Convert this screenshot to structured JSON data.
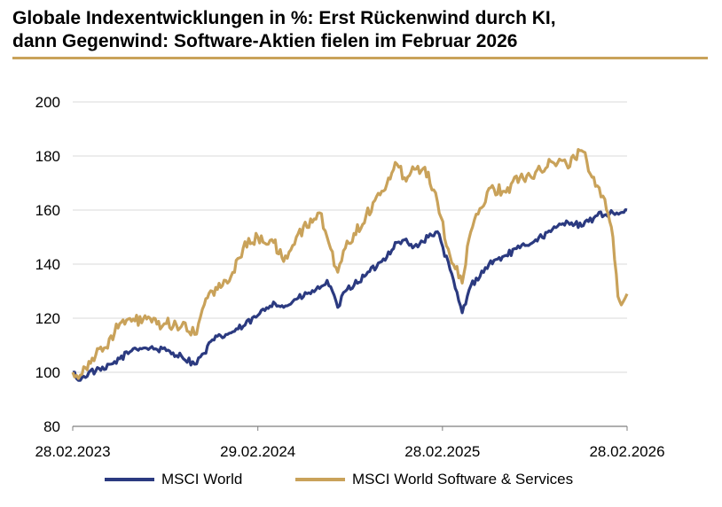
{
  "header": {
    "title_line1": "Globale Indexentwicklungen in %: Erst Rückenwind durch KI,",
    "title_line2": "dann Gegenwind: Software-Aktien fielen im Februar 2026"
  },
  "colors": {
    "world": "#2b3a80",
    "software": "#c9a25a",
    "grid": "#d9d9d9",
    "rule": "#c9a25a"
  },
  "legend": [
    {
      "label": "MSCI World",
      "color": "#2b3a80"
    },
    {
      "label": "MSCI World Software & Services",
      "color": "#c9a25a"
    }
  ],
  "chart_data": {
    "type": "line",
    "title": "Globale Indexentwicklungen in %: Erst Rückenwind durch KI, dann Gegenwind: Software-Aktien fielen im Februar 2026",
    "xlabel": "",
    "ylabel": "",
    "ylim": [
      80,
      200
    ],
    "xlim": [
      "2023-02-28",
      "2026-02-28"
    ],
    "yticks": [
      80,
      100,
      120,
      140,
      160,
      180,
      200
    ],
    "xticks": [
      "28.02.2023",
      "29.02.2024",
      "28.02.2025",
      "28.02.2026"
    ],
    "grid": "horizontal",
    "legend_position": "bottom",
    "series": [
      {
        "name": "MSCI World",
        "color": "#2b3a80",
        "x": [
          "2023-02-28",
          "2023-03-15",
          "2023-04-01",
          "2023-05-01",
          "2023-06-01",
          "2023-07-01",
          "2023-07-31",
          "2023-09-01",
          "2023-10-01",
          "2023-10-27",
          "2023-11-15",
          "2023-12-01",
          "2023-12-31",
          "2024-01-31",
          "2024-02-29",
          "2024-03-31",
          "2024-04-20",
          "2024-05-15",
          "2024-06-30",
          "2024-07-15",
          "2024-08-05",
          "2024-08-20",
          "2024-09-30",
          "2024-10-31",
          "2024-11-30",
          "2024-12-15",
          "2024-12-31",
          "2025-01-31",
          "2025-02-18",
          "2025-03-15",
          "2025-04-08",
          "2025-04-25",
          "2025-05-31",
          "2025-06-30",
          "2025-07-31",
          "2025-08-31",
          "2025-09-30",
          "2025-10-31",
          "2025-11-30",
          "2025-12-31",
          "2026-01-31",
          "2026-02-15",
          "2026-02-28"
        ],
        "values": [
          100,
          97,
          100,
          101,
          105,
          109,
          109,
          108,
          106,
          103,
          107,
          112,
          114,
          117,
          121,
          126,
          124,
          127,
          131,
          134,
          124,
          130,
          136,
          141,
          148,
          149,
          146,
          150,
          152,
          138,
          122,
          132,
          140,
          143,
          146,
          149,
          152,
          156,
          154,
          158,
          159,
          159,
          160
        ]
      },
      {
        "name": "MSCI World Software & Services",
        "color": "#c9a25a",
        "x": [
          "2023-02-28",
          "2023-03-15",
          "2023-04-01",
          "2023-05-01",
          "2023-06-01",
          "2023-07-01",
          "2023-07-31",
          "2023-08-20",
          "2023-09-01",
          "2023-10-01",
          "2023-10-27",
          "2023-11-15",
          "2023-12-01",
          "2023-12-31",
          "2024-01-31",
          "2024-02-29",
          "2024-03-31",
          "2024-04-20",
          "2024-05-15",
          "2024-06-30",
          "2024-07-15",
          "2024-08-05",
          "2024-08-20",
          "2024-09-30",
          "2024-10-31",
          "2024-11-30",
          "2024-12-15",
          "2024-12-31",
          "2025-01-31",
          "2025-02-18",
          "2025-03-15",
          "2025-04-08",
          "2025-04-25",
          "2025-05-31",
          "2025-06-30",
          "2025-07-31",
          "2025-08-31",
          "2025-09-30",
          "2025-10-31",
          "2025-11-30",
          "2025-12-31",
          "2026-01-15",
          "2026-01-31",
          "2026-02-10",
          "2026-02-20",
          "2026-02-28"
        ],
        "values": [
          100,
          99,
          104,
          109,
          118,
          119,
          120,
          116,
          118,
          117,
          114,
          125,
          130,
          133,
          146,
          150,
          148,
          141,
          150,
          159,
          150,
          137,
          146,
          158,
          167,
          177,
          172,
          176,
          174,
          163,
          143,
          133,
          152,
          168,
          167,
          172,
          174,
          178,
          177,
          182,
          169,
          164,
          150,
          128,
          126,
          129
        ]
      }
    ]
  }
}
